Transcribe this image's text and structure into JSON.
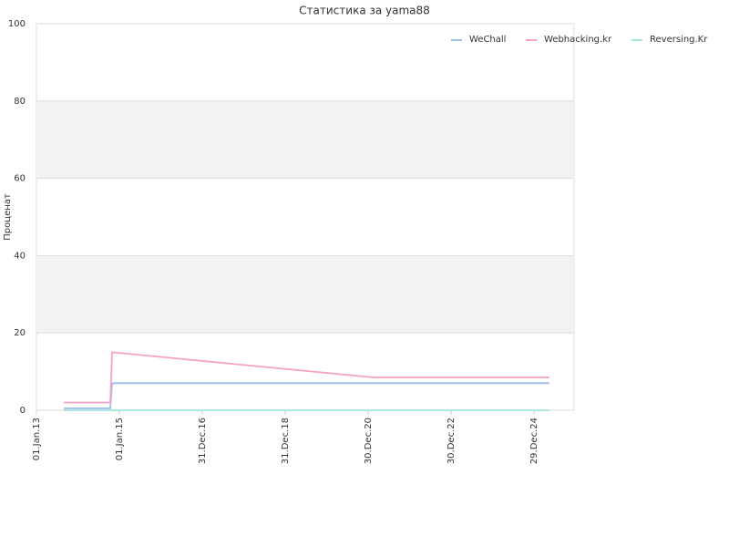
{
  "chart_data": {
    "type": "line",
    "title": "Статистика за yama88",
    "y_label": "Проценат",
    "x": [
      "2013-08-30",
      "2014-10-13",
      "2014-10-29",
      "2021-02-15",
      "2025-05-13"
    ],
    "series": [
      {
        "name": "WeChall",
        "color": "#9dbcf0",
        "values": [
          0.5,
          0.5,
          7,
          7,
          7
        ]
      },
      {
        "name": "Webhacking.kr",
        "color": "#f5a3c7",
        "values": [
          2,
          2,
          15,
          8.5,
          8.5
        ]
      },
      {
        "name": "Reversing.Kr",
        "color": "#a3e6dc",
        "values": [
          0,
          0,
          0,
          0,
          0
        ]
      }
    ],
    "xlim": [
      "2013-01-01",
      "2025-12-17"
    ],
    "xticks": [
      {
        "value": "2013-01-01",
        "label": "01.Jan.13"
      },
      {
        "value": "2015-01-01",
        "label": "01.Jan.15"
      },
      {
        "value": "2016-12-31",
        "label": "31.Dec.16"
      },
      {
        "value": "2018-12-31",
        "label": "31.Dec.18"
      },
      {
        "value": "2020-12-30",
        "label": "30.Dec.20"
      },
      {
        "value": "2022-12-30",
        "label": "30.Dec.22"
      },
      {
        "value": "2024-12-29",
        "label": "29.Dec.24"
      }
    ],
    "ylim": [
      0,
      100
    ],
    "yticks": [
      0,
      20,
      40,
      60,
      80,
      100
    ],
    "grid": true,
    "alternate_bands": true,
    "legend": "top-right"
  }
}
